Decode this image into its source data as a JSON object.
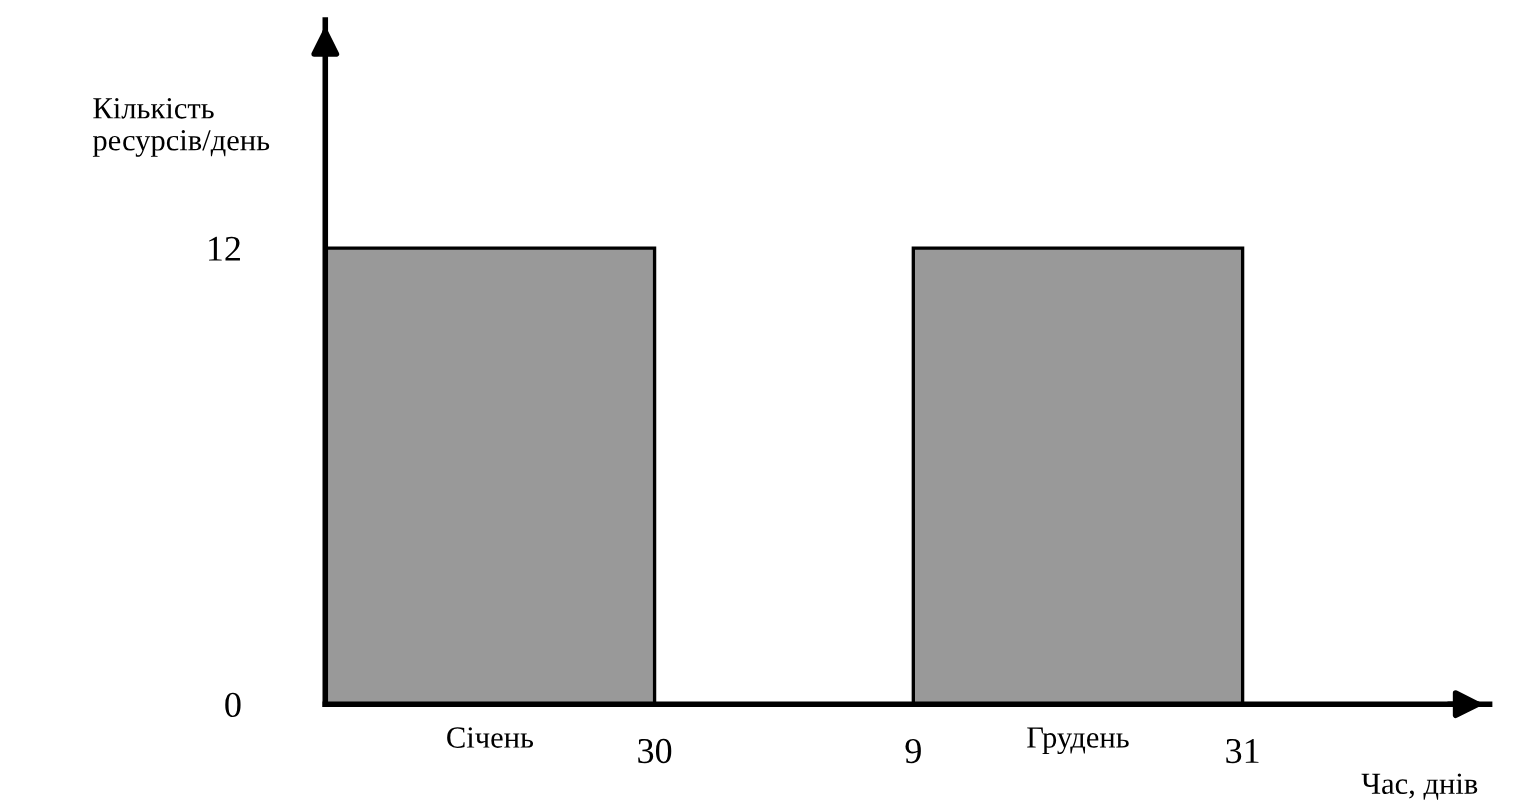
{
  "chart_data": {
    "type": "bar",
    "xlabel": "Час, днів",
    "ylabel": "Кількість\nресурсів/день",
    "categories": [
      "Січень",
      "Грудень"
    ],
    "values": [
      12,
      12
    ],
    "color": "#999999",
    "ylim": [
      0,
      18
    ],
    "yticks": [
      0,
      12
    ],
    "grid": false,
    "annotations": [
      "30",
      "9",
      "31"
    ]
  }
}
